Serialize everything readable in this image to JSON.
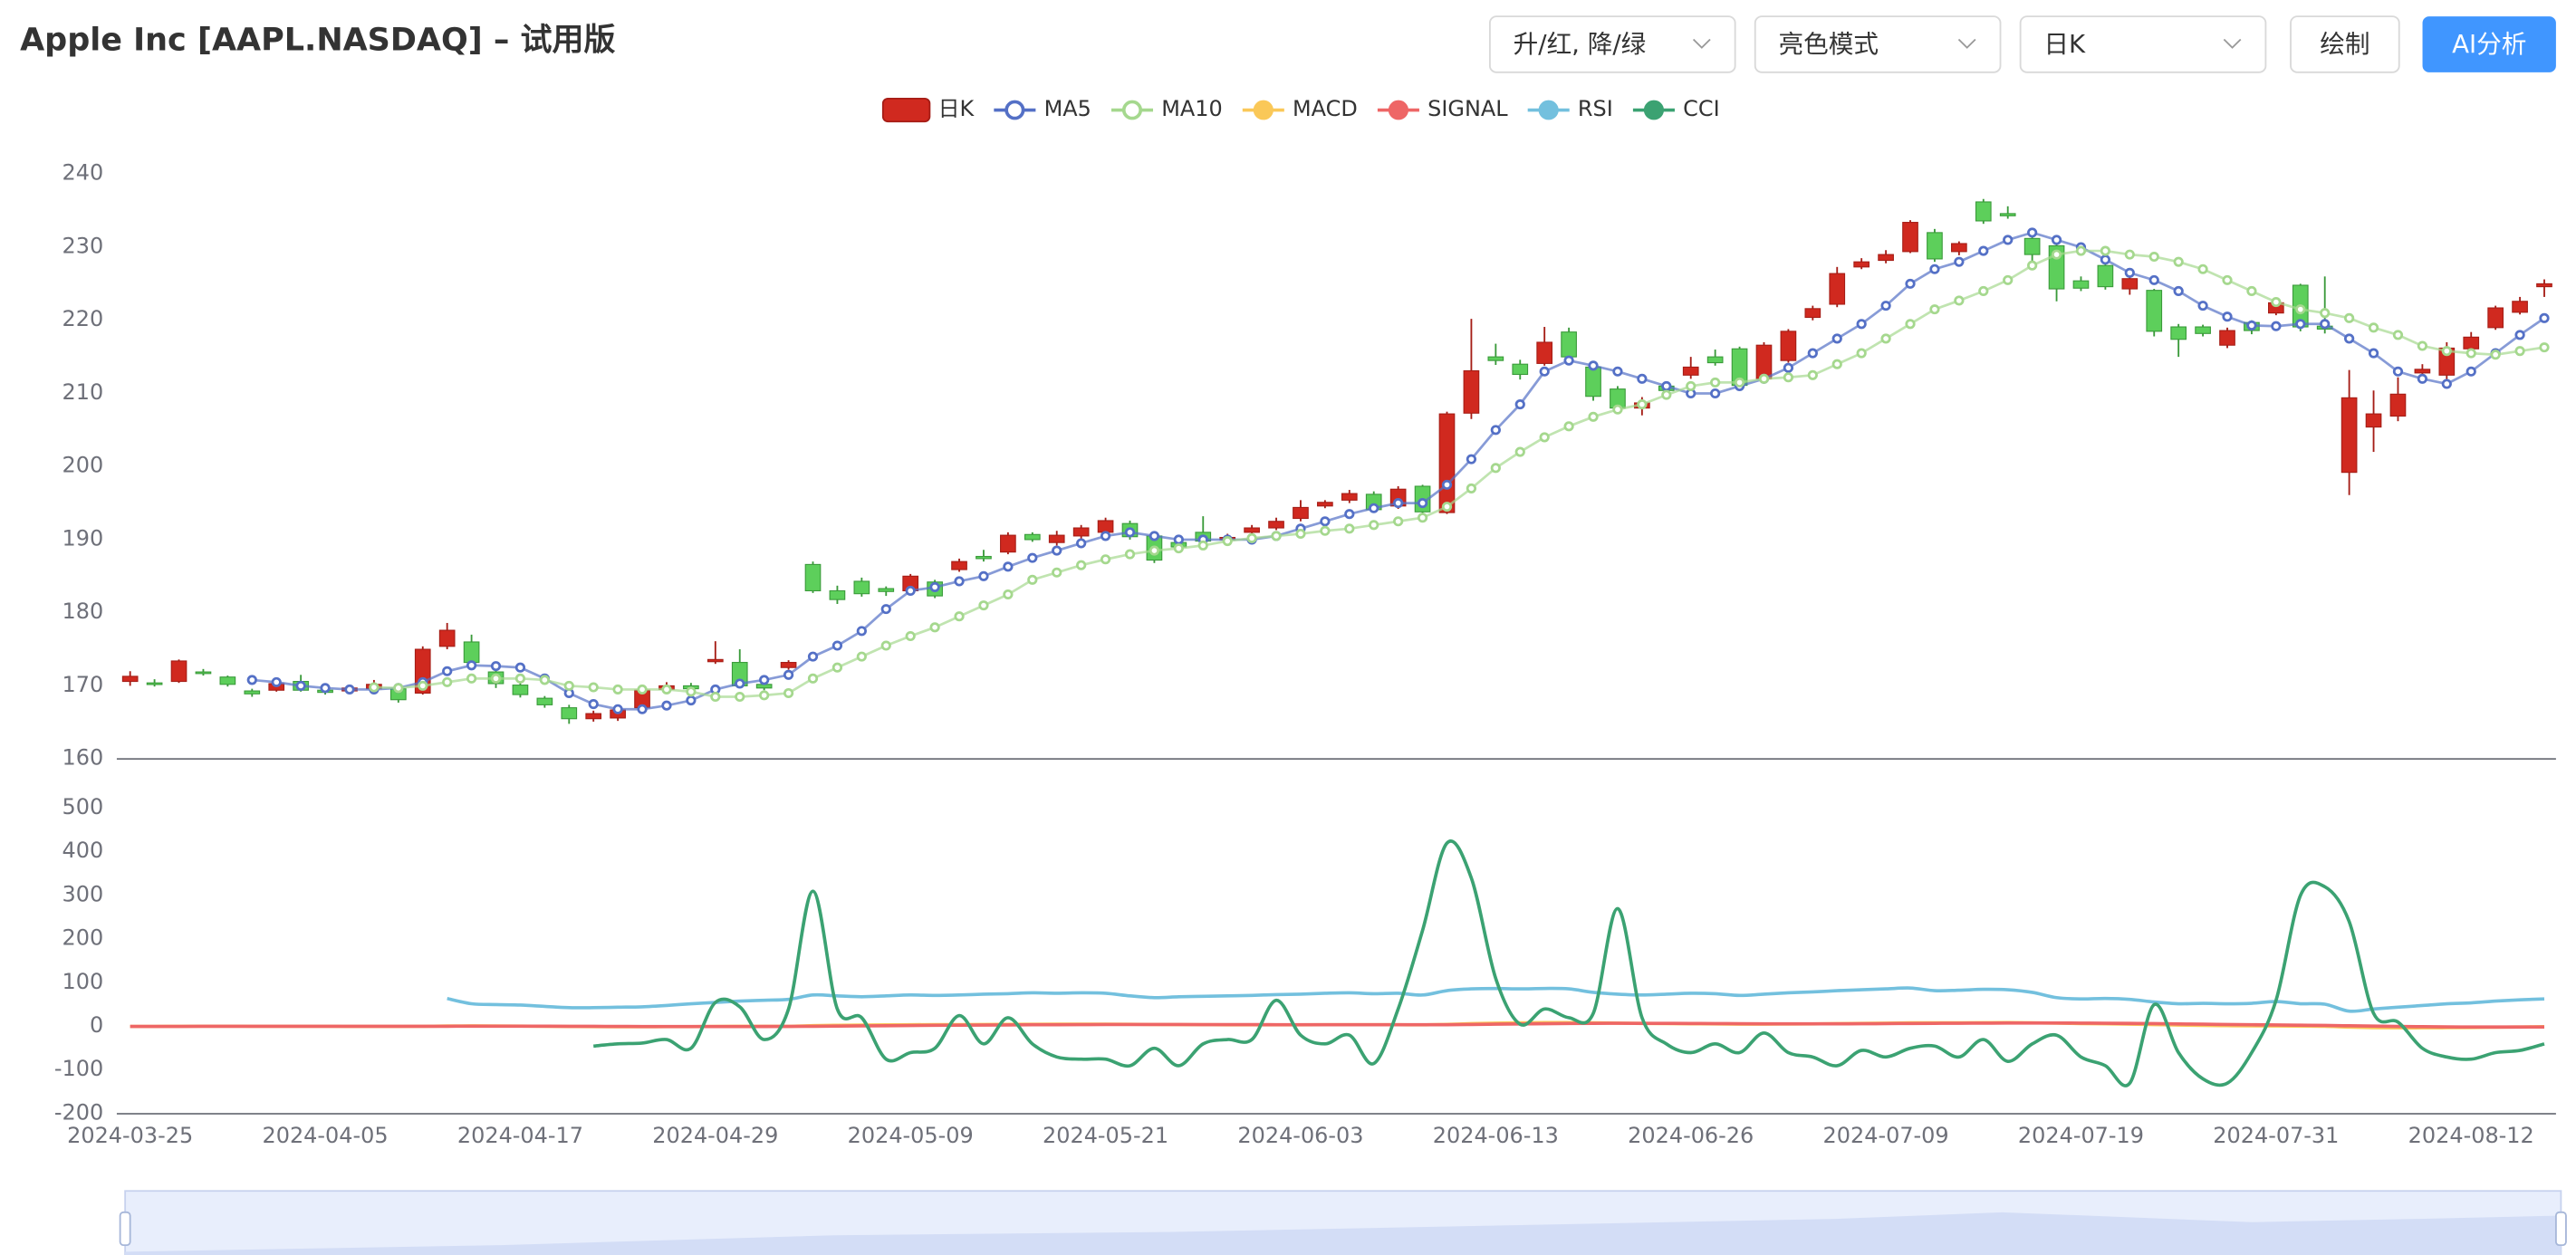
{
  "header": {
    "title": "Apple Inc [AAPL.NASDAQ] – 试用版",
    "selects": [
      "升/红, 降/绿",
      "亮色模式",
      "日K"
    ],
    "buttons": [
      "绘制",
      "AI分析"
    ]
  },
  "chart_data": {
    "type": "candlestick",
    "categories": [
      "2024-03-25",
      null,
      null,
      null,
      null,
      null,
      null,
      null,
      "2024-04-05",
      null,
      null,
      null,
      null,
      null,
      null,
      null,
      "2024-04-17",
      null,
      null,
      null,
      null,
      null,
      null,
      null,
      "2024-04-29",
      null,
      null,
      null,
      null,
      null,
      null,
      null,
      "2024-05-09",
      null,
      null,
      null,
      null,
      null,
      null,
      null,
      "2024-05-21",
      null,
      null,
      null,
      null,
      null,
      null,
      null,
      "2024-06-03",
      null,
      null,
      null,
      null,
      null,
      null,
      null,
      "2024-06-13",
      null,
      null,
      null,
      null,
      null,
      null,
      null,
      "2024-06-26",
      null,
      null,
      null,
      null,
      null,
      null,
      null,
      "2024-07-09",
      null,
      null,
      null,
      null,
      null,
      null,
      null,
      "2024-07-19",
      null,
      null,
      null,
      null,
      null,
      null,
      null,
      "2024-07-31",
      null,
      null,
      null,
      null,
      null,
      null,
      null,
      "2024-08-12",
      null,
      null,
      null
    ],
    "ylim": [
      160,
      240
    ],
    "yticks": [
      160,
      170,
      180,
      190,
      200,
      210,
      220,
      230,
      240
    ],
    "y2lim": [
      -200,
      500
    ],
    "y2ticks": [
      -200,
      -100,
      0,
      100,
      200,
      300,
      400,
      500
    ],
    "grid": false,
    "series": [
      {
        "name": "日K",
        "type": "candlestick",
        "color": "#d0291f",
        "down_color": "#5dcf5b",
        "open": [
          170.6,
          170.4,
          170.6,
          171.9,
          171.2,
          169.3,
          169.4,
          170.6,
          169.4,
          169.3,
          169.6,
          169.6,
          169,
          175.4,
          176,
          171.9,
          170.1,
          168.3,
          167,
          165.5,
          165.6,
          167,
          169.5,
          170,
          173.3,
          173.2,
          170.2,
          172.5,
          186.6,
          183,
          184.3,
          183.3,
          183,
          184.2,
          185.9,
          187.7,
          188.3,
          190.7,
          189.6,
          190.5,
          191,
          192.2,
          190.5,
          189.6,
          191,
          190,
          191,
          191.6,
          192.9,
          194.6,
          195.4,
          196.2,
          194.6,
          197.3,
          193.7,
          207.3,
          215,
          214,
          214.1,
          218.4,
          213.6,
          210.6,
          208,
          211,
          212.5,
          215,
          216.1,
          212,
          214.5,
          220.4,
          222.2,
          227.3,
          228.2,
          229.4,
          232,
          229.4,
          236.2,
          234.6,
          231.2,
          230.2,
          225.4,
          227.5,
          224.3,
          224.1,
          219.1,
          219.1,
          216.6,
          219.7,
          221,
          224.8,
          219.2,
          199.2,
          205.4,
          206.9,
          212.8,
          212.5,
          216.1,
          219,
          221.1,
          224.6
        ],
        "close": [
          171.3,
          170.2,
          173.4,
          171.7,
          170.2,
          168.9,
          170.3,
          169.4,
          169.1,
          169.7,
          170.2,
          168.1,
          175,
          177.6,
          173.2,
          170.3,
          168.8,
          167.4,
          165.5,
          166.2,
          166.7,
          169.4,
          170,
          169.6,
          173.6,
          170,
          169.7,
          173.2,
          183,
          181.8,
          182.6,
          182.9,
          185,
          182.3,
          187,
          187.4,
          190.6,
          190,
          190.6,
          191.6,
          192.6,
          190.4,
          187.2,
          189,
          189.8,
          190.3,
          191.6,
          192.5,
          194.4,
          195.1,
          196.3,
          194.1,
          196.9,
          193.8,
          207.2,
          213.1,
          214.5,
          212.6,
          217,
          215,
          209.6,
          208,
          208.7,
          210.4,
          213.6,
          214.2,
          211.1,
          216.6,
          218.5,
          221.6,
          226.4,
          228,
          229,
          233.4,
          228.4,
          230.5,
          233.6,
          234.3,
          229,
          224.3,
          224.4,
          224.6,
          225.7,
          218.5,
          217.4,
          218.2,
          218.6,
          218.6,
          222.4,
          219.1,
          218.8,
          209.4,
          207.2,
          209.9,
          213.3,
          216.2,
          217.7,
          221.7,
          222.6,
          225
        ],
        "high": [
          172,
          170.9,
          173.6,
          172.3,
          171.4,
          169.6,
          170.6,
          171.5,
          169.6,
          170,
          170.8,
          170,
          175.4,
          178.6,
          177,
          172.4,
          170.4,
          168.6,
          167.4,
          166.6,
          167.1,
          169.8,
          170.5,
          170.4,
          176.1,
          175,
          170.5,
          173.5,
          187,
          183.7,
          184.8,
          183.6,
          185.3,
          184.5,
          187.4,
          188.6,
          191,
          191,
          191.2,
          192,
          193,
          192.6,
          191,
          190.2,
          193.2,
          190.8,
          192,
          193,
          195.4,
          195.4,
          196.8,
          196.6,
          197.3,
          197.5,
          207.5,
          220.2,
          216.8,
          214.6,
          219.1,
          219,
          214,
          211,
          209.5,
          211.5,
          215,
          216,
          216.4,
          217,
          218.8,
          222,
          227.3,
          228.5,
          229.6,
          233.7,
          232.5,
          230.8,
          236.6,
          235.6,
          231.6,
          230.6,
          226,
          228,
          226,
          224.3,
          219.5,
          219.4,
          219,
          220,
          222.8,
          225,
          226,
          213.2,
          210.4,
          212.2,
          214,
          217,
          218.4,
          222,
          223.2,
          225.6
        ],
        "low": [
          170,
          169.9,
          170.4,
          171.4,
          169.9,
          168.5,
          169.2,
          169.2,
          168.8,
          169,
          169.2,
          167.7,
          168.8,
          175,
          172.8,
          169.7,
          168.4,
          167,
          164.8,
          165.1,
          165.2,
          166.5,
          169.2,
          169.3,
          173,
          169.8,
          169.4,
          172.2,
          182.7,
          181.2,
          182.2,
          182.3,
          182.8,
          182,
          185.6,
          187,
          188,
          189.7,
          189.2,
          190.1,
          190.6,
          190,
          186.8,
          188.5,
          189.5,
          189.6,
          190.4,
          191.3,
          192.5,
          194.3,
          195,
          193.7,
          194.2,
          193.4,
          193.5,
          206.5,
          213.9,
          211.9,
          213.8,
          214.6,
          209,
          207.7,
          207,
          210,
          212,
          213.8,
          210.8,
          211.5,
          214.2,
          220,
          221.8,
          227,
          227.8,
          229.2,
          228,
          228.9,
          233.2,
          233.9,
          228,
          222.6,
          224,
          224.2,
          223.5,
          217.8,
          215,
          217.8,
          216.2,
          218.1,
          220.7,
          218.5,
          218.2,
          196.1,
          202,
          206.2,
          211.8,
          211.5,
          215.8,
          218.7,
          220.8,
          223.2
        ]
      },
      {
        "name": "MA5",
        "type": "line",
        "color": "#5470c6",
        "markers": true,
        "values": [
          null,
          null,
          null,
          null,
          null,
          170.8,
          170.5,
          170,
          169.7,
          169.5,
          169.5,
          169.7,
          170.5,
          172,
          172.8,
          172.7,
          172.5,
          171,
          169,
          167.5,
          166.8,
          166.8,
          167.3,
          168,
          169.5,
          170.3,
          170.8,
          171.5,
          174,
          175.5,
          177.5,
          180.5,
          183,
          183.5,
          184.3,
          185,
          186.3,
          187.5,
          188.5,
          189.5,
          190.5,
          191,
          190.5,
          190,
          190,
          190,
          190,
          190.5,
          191.5,
          192.5,
          193.5,
          194.3,
          195,
          195,
          197.5,
          201,
          205,
          208.5,
          213,
          214.5,
          213.8,
          213,
          212,
          211,
          210,
          210,
          211,
          212,
          213.5,
          215.5,
          217.5,
          219.5,
          222,
          225,
          227,
          228,
          229.5,
          231,
          232,
          231,
          230,
          228.3,
          226.5,
          225.5,
          224,
          222,
          220.5,
          219.3,
          219.2,
          219.5,
          219.5,
          217.5,
          215.5,
          213,
          212,
          211.3,
          213,
          215.5,
          218,
          220.3
        ]
      },
      {
        "name": "MA10",
        "type": "line",
        "color": "#a5d88e",
        "markers": true,
        "values": [
          null,
          null,
          null,
          null,
          null,
          null,
          null,
          null,
          null,
          null,
          169.8,
          169.7,
          170,
          170.5,
          171,
          171,
          171,
          170.8,
          170,
          169.8,
          169.5,
          169.5,
          169.5,
          169.2,
          168.5,
          168.5,
          168.7,
          169,
          171,
          172.5,
          174,
          175.5,
          176.8,
          178,
          179.5,
          181,
          182.5,
          184.5,
          185.5,
          186.5,
          187.3,
          188,
          188.5,
          188.8,
          189.2,
          189.8,
          190.2,
          190.5,
          190.8,
          191.2,
          191.5,
          192,
          192.5,
          193,
          194.5,
          197,
          199.8,
          202,
          204,
          205.5,
          206.8,
          207.8,
          208.5,
          209.8,
          211,
          211.5,
          211.5,
          212,
          212.2,
          212.5,
          214,
          215.5,
          217.5,
          219.5,
          221.5,
          222.7,
          224,
          225.5,
          227.5,
          229,
          229.5,
          229.5,
          229,
          228.7,
          228,
          227,
          225.5,
          224,
          222.5,
          221.5,
          221,
          220.3,
          219,
          218,
          216.5,
          215.8,
          215.5,
          215.3,
          215.8,
          216.3
        ]
      },
      {
        "name": "MACD",
        "type": "line",
        "color": "#fac858",
        "axis": "y2",
        "values": [
          0,
          0.1,
          0.4,
          0.5,
          0.5,
          0.4,
          0.4,
          0.3,
          0.2,
          0.1,
          0.1,
          0,
          0.4,
          1,
          1.2,
          1,
          0.7,
          0.3,
          -0.2,
          -0.6,
          -0.8,
          -0.8,
          -0.6,
          -0.4,
          0,
          0.2,
          0.2,
          0.4,
          1.8,
          2.6,
          3.2,
          3.6,
          4,
          4.1,
          4.3,
          4.5,
          4.8,
          5,
          5.1,
          5.2,
          5.3,
          5,
          4.4,
          4.1,
          3.9,
          3.7,
          3.6,
          3.6,
          3.7,
          3.8,
          3.9,
          3.8,
          3.9,
          3.6,
          4.8,
          6.4,
          7.6,
          8.2,
          8.8,
          8.8,
          8.3,
          7.6,
          6.9,
          6.4,
          6.1,
          5.8,
          5.3,
          5.3,
          5.5,
          5.8,
          6.4,
          7,
          7.5,
          8.2,
          8.3,
          8.3,
          8.6,
          8.8,
          8.4,
          7.5,
          6.6,
          5.9,
          5.2,
          4.2,
          3.2,
          2.4,
          1.8,
          1.3,
          1.1,
          0.6,
          0.2,
          -1.6,
          -2.7,
          -3.2,
          -3.2,
          -2.9,
          -2.5,
          -1.8,
          -1.2,
          -0.5
        ]
      },
      {
        "name": "SIGNAL",
        "type": "line",
        "color": "#ee6666",
        "axis": "y2",
        "values": [
          0,
          0,
          0.1,
          0.2,
          0.3,
          0.3,
          0.3,
          0.3,
          0.3,
          0.3,
          0.2,
          0.2,
          0.2,
          0.4,
          0.5,
          0.6,
          0.6,
          0.5,
          0.4,
          0.2,
          0,
          -0.2,
          -0.3,
          -0.3,
          -0.3,
          -0.2,
          -0.1,
          0,
          0.4,
          0.8,
          1.3,
          1.7,
          2.2,
          2.6,
          2.9,
          3.2,
          3.5,
          3.8,
          4,
          4.2,
          4.4,
          4.5,
          4.5,
          4.4,
          4.3,
          4.2,
          4.1,
          4,
          3.9,
          3.9,
          3.9,
          3.9,
          3.9,
          3.8,
          4,
          4.5,
          5.1,
          5.7,
          6.3,
          6.8,
          7.1,
          7.2,
          7.1,
          7,
          6.8,
          6.6,
          6.3,
          6.1,
          6,
          5.9,
          6,
          6.2,
          6.5,
          6.8,
          7.1,
          7.4,
          7.6,
          7.8,
          7.9,
          7.8,
          7.6,
          7.3,
          6.9,
          6.4,
          5.8,
          5.1,
          4.5,
          3.9,
          3.3,
          2.8,
          2.3,
          1.5,
          0.7,
          0,
          -0.6,
          -1,
          -1.3,
          -1.4,
          -1.4,
          -1.2
        ]
      },
      {
        "name": "RSI",
        "type": "line",
        "color": "#73c0de",
        "axis": "y2",
        "values": [
          null,
          null,
          null,
          null,
          null,
          null,
          null,
          null,
          null,
          null,
          null,
          null,
          null,
          64,
          52,
          50,
          49,
          46,
          43,
          43,
          44,
          45,
          48,
          52,
          55,
          58,
          60,
          62,
          72,
          70,
          68,
          70,
          72,
          71,
          72,
          74,
          75,
          77,
          76,
          77,
          76,
          70,
          66,
          68,
          69,
          70,
          71,
          73,
          74,
          76,
          77,
          75,
          76,
          72,
          82,
          86,
          87,
          86,
          87,
          86,
          78,
          74,
          72,
          74,
          76,
          75,
          71,
          74,
          77,
          79,
          82,
          84,
          86,
          88,
          82,
          83,
          85,
          84,
          78,
          66,
          63,
          64,
          62,
          56,
          52,
          53,
          52,
          53,
          57,
          52,
          51,
          35,
          40,
          44,
          48,
          52,
          54,
          58,
          61,
          63
        ]
      },
      {
        "name": "CCI",
        "type": "line",
        "color": "#3ba272",
        "axis": "y2",
        "values": [
          null,
          null,
          null,
          null,
          null,
          null,
          null,
          null,
          null,
          null,
          null,
          null,
          null,
          null,
          null,
          null,
          null,
          null,
          null,
          -45,
          -40,
          -38,
          -30,
          -50,
          55,
          45,
          -30,
          40,
          310,
          40,
          20,
          -75,
          -60,
          -50,
          25,
          -40,
          20,
          -40,
          -70,
          -75,
          -75,
          -90,
          -50,
          -90,
          -40,
          -30,
          -30,
          60,
          -20,
          -40,
          -20,
          -85,
          40,
          220,
          420,
          340,
          110,
          5,
          40,
          20,
          30,
          270,
          20,
          -40,
          -60,
          -40,
          -60,
          -15,
          -60,
          -70,
          -90,
          -55,
          -70,
          -50,
          -45,
          -70,
          -30,
          -80,
          -40,
          -20,
          -70,
          -90,
          -130,
          50,
          -60,
          -120,
          -130,
          -60,
          60,
          300,
          320,
          240,
          30,
          10,
          -50,
          -70,
          -75,
          -60,
          -55,
          -40
        ]
      }
    ]
  }
}
